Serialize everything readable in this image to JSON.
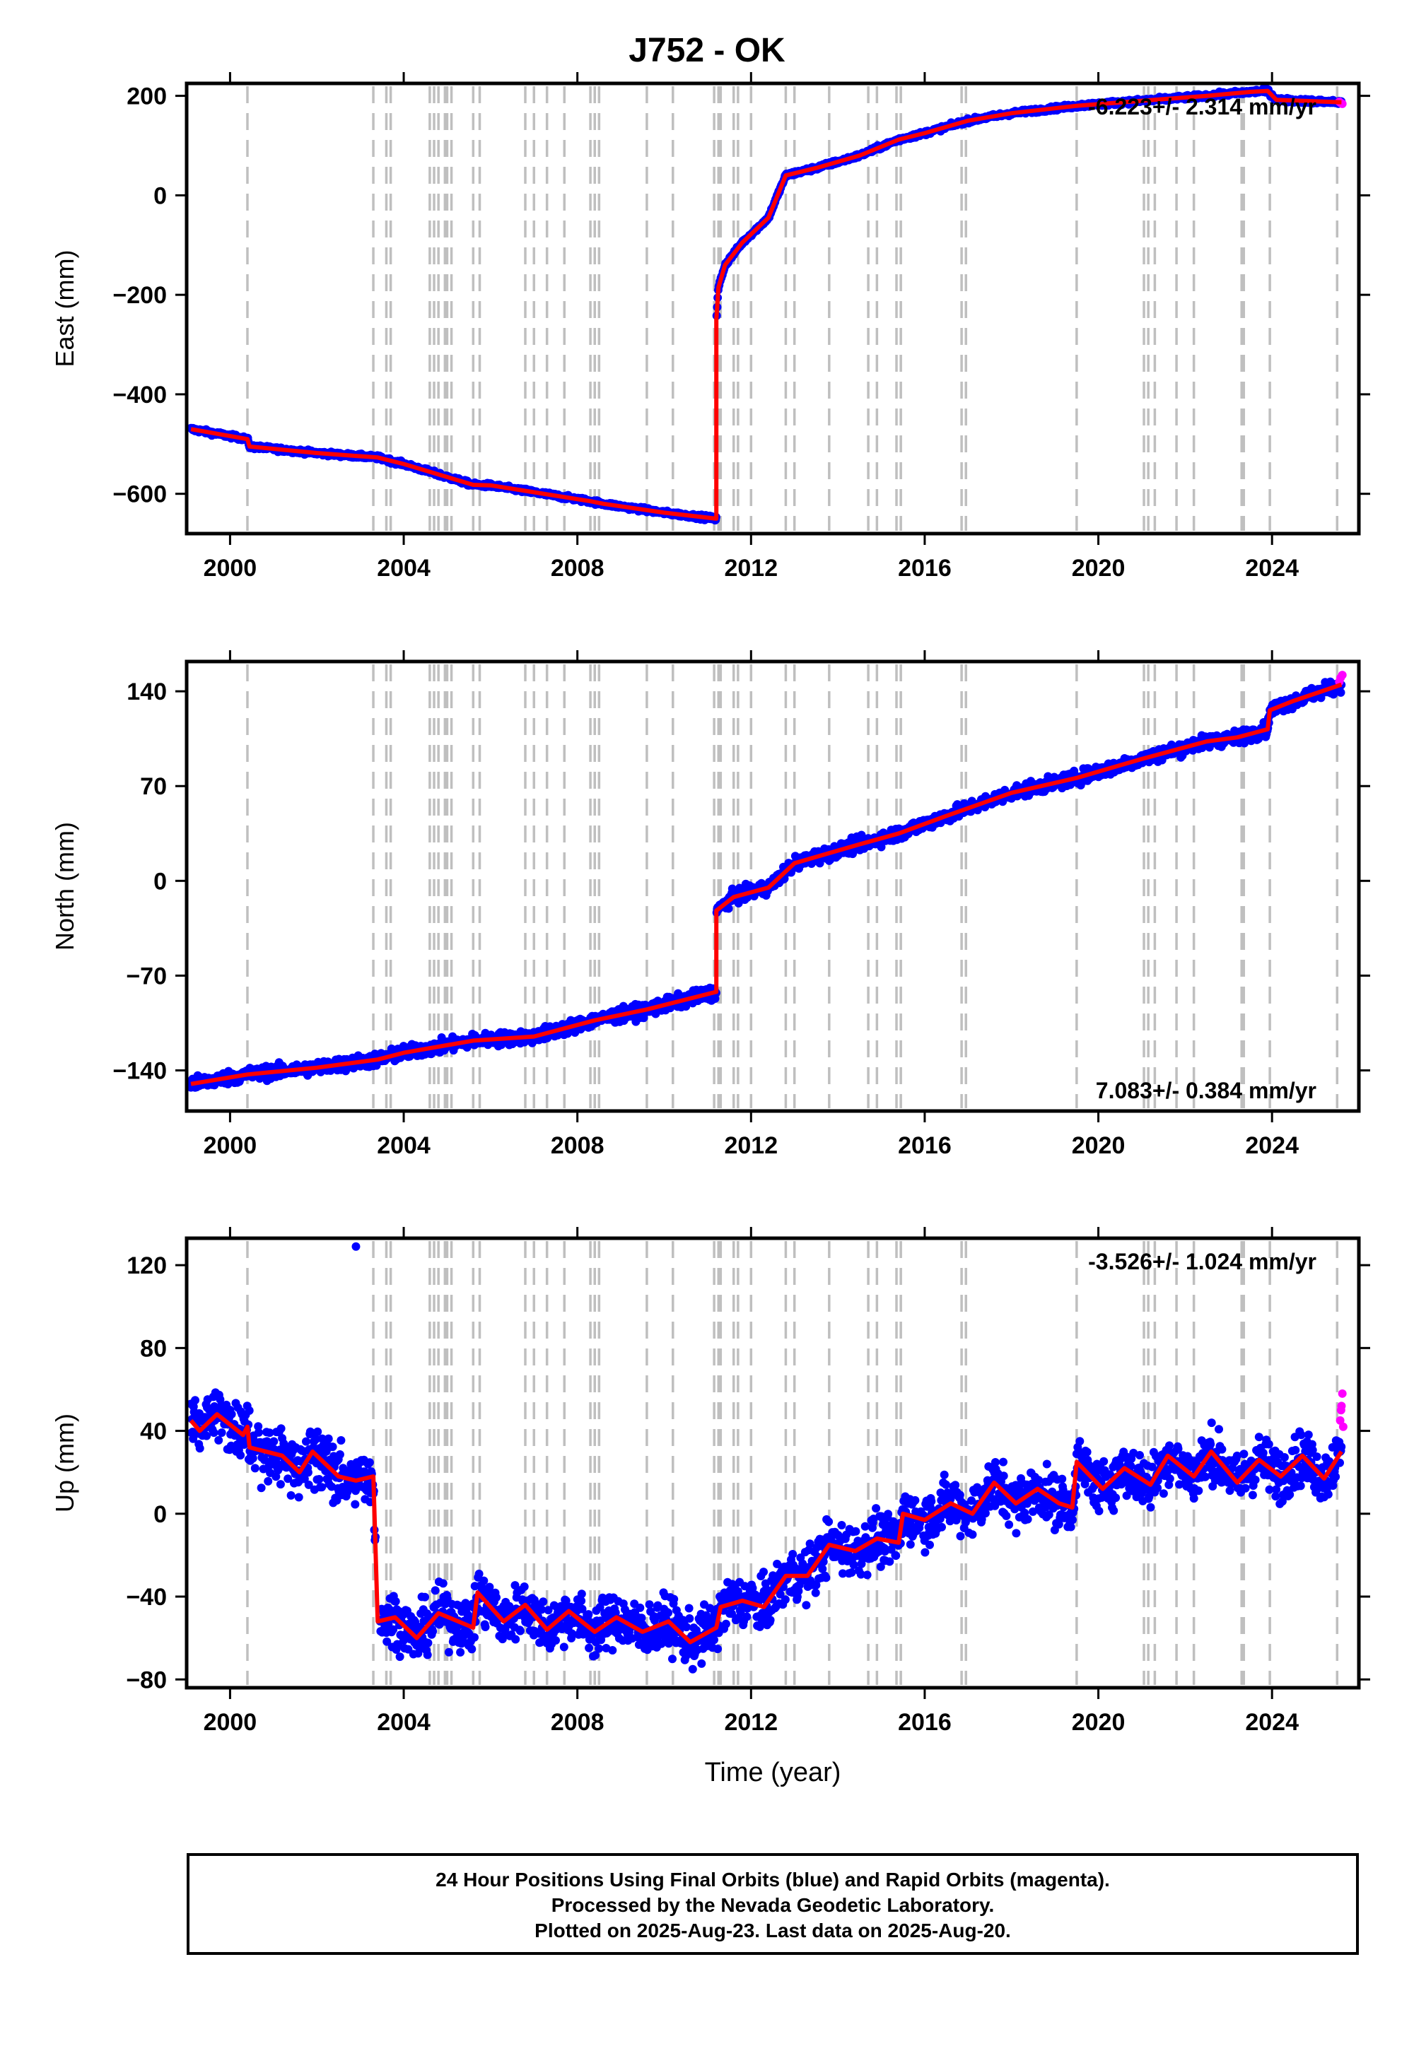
{
  "title": "J752 - OK",
  "footer": {
    "line1": "24 Hour Positions Using Final Orbits (blue) and Rapid Orbits (magenta).",
    "line2": "Processed by the Nevada Geodetic Laboratory.",
    "line3": "Plotted on 2025-Aug-23. Last data on 2025-Aug-20."
  },
  "colors": {
    "final_orbits": "#0000ff",
    "rapid_orbits": "#ff00ff",
    "model": "#ff0000",
    "event_lines": "#bfbfbf"
  },
  "chart_data": [
    {
      "type": "scatter",
      "panel": "east",
      "ylabel": "East (mm)",
      "xlabel": "",
      "rate_text": "-6.223+/- 2.314 mm/yr",
      "rate_position": "top-right",
      "xlim": [
        1999.0,
        2026.0
      ],
      "ylim": [
        -680,
        225
      ],
      "xticks": [
        2000,
        2004,
        2008,
        2012,
        2016,
        2020,
        2024
      ],
      "yticks": [
        -600,
        -400,
        -200,
        0,
        200
      ],
      "grid": false,
      "model_line": [
        [
          1999.1,
          -470
        ],
        [
          2000.4,
          -490
        ],
        [
          2000.45,
          -505
        ],
        [
          2002.0,
          -518
        ],
        [
          2003.4,
          -527
        ],
        [
          2004.0,
          -540
        ],
        [
          2005.6,
          -582
        ],
        [
          2006.0,
          -583
        ],
        [
          2008.3,
          -615
        ],
        [
          2008.6,
          -620
        ],
        [
          2010.0,
          -638
        ],
        [
          2011.2,
          -650
        ],
        [
          2011.2,
          -250
        ],
        [
          2011.25,
          -185
        ],
        [
          2011.4,
          -140
        ],
        [
          2011.8,
          -95
        ],
        [
          2012.4,
          -45
        ],
        [
          2012.8,
          40
        ],
        [
          2013.5,
          55
        ],
        [
          2014.5,
          80
        ],
        [
          2015.4,
          112
        ],
        [
          2016.0,
          125
        ],
        [
          2017.0,
          150
        ],
        [
          2018.0,
          165
        ],
        [
          2019.5,
          180
        ],
        [
          2021.0,
          190
        ],
        [
          2022.5,
          200
        ],
        [
          2023.5,
          208
        ],
        [
          2023.9,
          210
        ],
        [
          2024.1,
          192
        ],
        [
          2025.6,
          187
        ]
      ],
      "rapid_points": [
        [
          2025.55,
          188
        ],
        [
          2025.58,
          186
        ],
        [
          2025.62,
          184
        ]
      ],
      "outliers": []
    },
    {
      "type": "scatter",
      "panel": "north",
      "ylabel": "North (mm)",
      "xlabel": "",
      "rate_text": "7.083+/- 0.384 mm/yr",
      "rate_position": "bottom-right",
      "xlim": [
        1999.0,
        2026.0
      ],
      "ylim": [
        -170,
        162
      ],
      "xticks": [
        2000,
        2004,
        2008,
        2012,
        2016,
        2020,
        2024
      ],
      "yticks": [
        -140,
        -70,
        0,
        70,
        140
      ],
      "grid": false,
      "model_line": [
        [
          1999.1,
          -150
        ],
        [
          2000.4,
          -143
        ],
        [
          2002.0,
          -138
        ],
        [
          2003.4,
          -132
        ],
        [
          2004.0,
          -127
        ],
        [
          2005.6,
          -118
        ],
        [
          2007.0,
          -115
        ],
        [
          2008.4,
          -103
        ],
        [
          2009.6,
          -95
        ],
        [
          2011.2,
          -82
        ],
        [
          2011.2,
          -22
        ],
        [
          2011.6,
          -12
        ],
        [
          2012.4,
          -5
        ],
        [
          2013.0,
          13
        ],
        [
          2014.5,
          27
        ],
        [
          2015.4,
          35
        ],
        [
          2016.5,
          48
        ],
        [
          2018.0,
          65
        ],
        [
          2019.5,
          76
        ],
        [
          2021.0,
          90
        ],
        [
          2022.5,
          103
        ],
        [
          2023.2,
          106
        ],
        [
          2023.9,
          112
        ],
        [
          2023.95,
          126
        ],
        [
          2024.5,
          133
        ],
        [
          2025.6,
          145
        ]
      ],
      "rapid_points": [
        [
          2025.55,
          147
        ],
        [
          2025.58,
          150
        ],
        [
          2025.62,
          152
        ]
      ],
      "outliers": []
    },
    {
      "type": "scatter",
      "panel": "up",
      "ylabel": "Up (mm)",
      "xlabel": "Time (year)",
      "rate_text": "-3.526+/- 1.024 mm/yr",
      "rate_position": "top-right",
      "xlim": [
        1999.0,
        2026.0
      ],
      "ylim": [
        -84,
        133
      ],
      "xticks": [
        2000,
        2004,
        2008,
        2012,
        2016,
        2020,
        2024
      ],
      "yticks": [
        -80,
        -40,
        0,
        40,
        80,
        120
      ],
      "grid": false,
      "model_line": [
        [
          1999.1,
          45
        ],
        [
          1999.3,
          40
        ],
        [
          1999.7,
          48
        ],
        [
          2000.3,
          38
        ],
        [
          2000.4,
          42
        ],
        [
          2000.45,
          32
        ],
        [
          2001.2,
          28
        ],
        [
          2001.6,
          20
        ],
        [
          2001.9,
          30
        ],
        [
          2002.5,
          18
        ],
        [
          2002.9,
          16
        ],
        [
          2003.3,
          18
        ],
        [
          2003.4,
          -52
        ],
        [
          2003.8,
          -50
        ],
        [
          2004.3,
          -60
        ],
        [
          2004.8,
          -48
        ],
        [
          2005.6,
          -55
        ],
        [
          2005.7,
          -38
        ],
        [
          2006.3,
          -52
        ],
        [
          2006.8,
          -44
        ],
        [
          2007.3,
          -56
        ],
        [
          2007.8,
          -47
        ],
        [
          2008.4,
          -57
        ],
        [
          2008.9,
          -50
        ],
        [
          2009.5,
          -57
        ],
        [
          2010.1,
          -52
        ],
        [
          2010.6,
          -62
        ],
        [
          2011.2,
          -55
        ],
        [
          2011.3,
          -45
        ],
        [
          2011.8,
          -42
        ],
        [
          2012.3,
          -45
        ],
        [
          2012.8,
          -30
        ],
        [
          2013.3,
          -30
        ],
        [
          2013.8,
          -15
        ],
        [
          2014.4,
          -18
        ],
        [
          2014.9,
          -12
        ],
        [
          2015.4,
          -14
        ],
        [
          2015.5,
          0
        ],
        [
          2016.0,
          -3
        ],
        [
          2016.6,
          5
        ],
        [
          2017.1,
          0
        ],
        [
          2017.6,
          15
        ],
        [
          2018.1,
          5
        ],
        [
          2018.6,
          12
        ],
        [
          2019.1,
          5
        ],
        [
          2019.4,
          3
        ],
        [
          2019.5,
          25
        ],
        [
          2020.1,
          12
        ],
        [
          2020.6,
          22
        ],
        [
          2021.2,
          14
        ],
        [
          2021.6,
          28
        ],
        [
          2022.2,
          18
        ],
        [
          2022.6,
          30
        ],
        [
          2023.2,
          15
        ],
        [
          2023.7,
          26
        ],
        [
          2024.2,
          18
        ],
        [
          2024.7,
          28
        ],
        [
          2025.2,
          17
        ],
        [
          2025.6,
          30
        ]
      ],
      "rapid_points": [
        [
          2025.57,
          45
        ],
        [
          2025.59,
          50
        ],
        [
          2025.6,
          52
        ],
        [
          2025.62,
          58
        ],
        [
          2025.64,
          42
        ]
      ],
      "outliers": [
        [
          2002.9,
          129
        ]
      ]
    }
  ],
  "event_lines_years": [
    2000.4,
    2003.3,
    2003.6,
    2003.7,
    2004.6,
    2004.7,
    2004.8,
    2004.95,
    2005.0,
    2005.1,
    2005.6,
    2005.75,
    2006.8,
    2007.0,
    2007.3,
    2007.7,
    2008.3,
    2008.4,
    2008.5,
    2009.6,
    2010.2,
    2011.15,
    2011.25,
    2011.3,
    2011.6,
    2011.7,
    2012.0,
    2012.8,
    2013.0,
    2013.8,
    2014.7,
    2014.9,
    2015.35,
    2015.45,
    2016.85,
    2016.95,
    2019.5,
    2021.05,
    2021.15,
    2021.3,
    2021.8,
    2022.2,
    2023.3,
    2023.35,
    2023.95,
    2025.5
  ]
}
